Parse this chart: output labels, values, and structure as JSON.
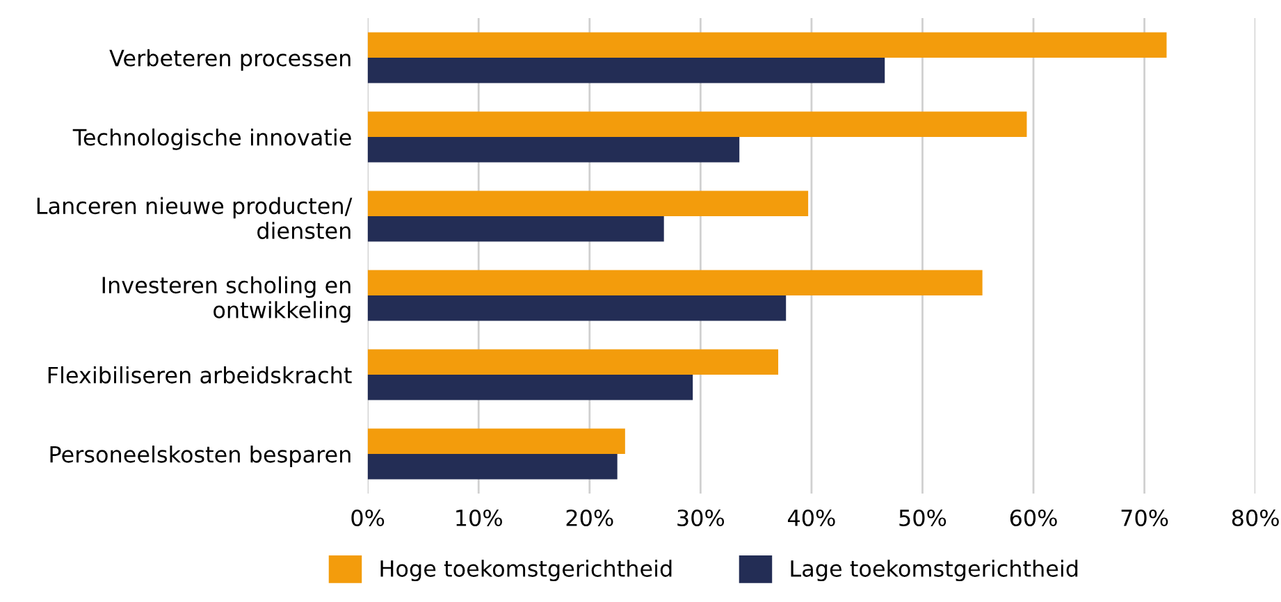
{
  "chart_data": {
    "type": "bar",
    "orientation": "horizontal",
    "categories": [
      "Verbeteren processen",
      "Technologische innovatie",
      "Lanceren nieuwe producten/\ndiensten",
      "Investeren scholing en\nontwikkeling",
      "Flexibiliseren arbeidskracht",
      "Personeelskosten besparen"
    ],
    "series": [
      {
        "name": "Hoge toekomstgerichtheid",
        "color": "#f39c0c",
        "values": [
          72,
          59.4,
          39.7,
          55.4,
          37,
          23.2
        ]
      },
      {
        "name": "Lage toekomstgerichtheid",
        "color": "#232d55",
        "values": [
          46.6,
          33.5,
          26.7,
          37.7,
          29.3,
          22.5
        ]
      }
    ],
    "xlim": [
      0,
      80
    ],
    "xticks": [
      {
        "value": 0,
        "label": "0%"
      },
      {
        "value": 10,
        "label": "10%"
      },
      {
        "value": 20,
        "label": "20%"
      },
      {
        "value": 30,
        "label": "30%"
      },
      {
        "value": 40,
        "label": "40%"
      },
      {
        "value": 50,
        "label": "50%"
      },
      {
        "value": 60,
        "label": "60%"
      },
      {
        "value": 70,
        "label": "70%"
      },
      {
        "value": 80,
        "label": "80%"
      }
    ],
    "grid": "x",
    "legend": "bottom"
  }
}
